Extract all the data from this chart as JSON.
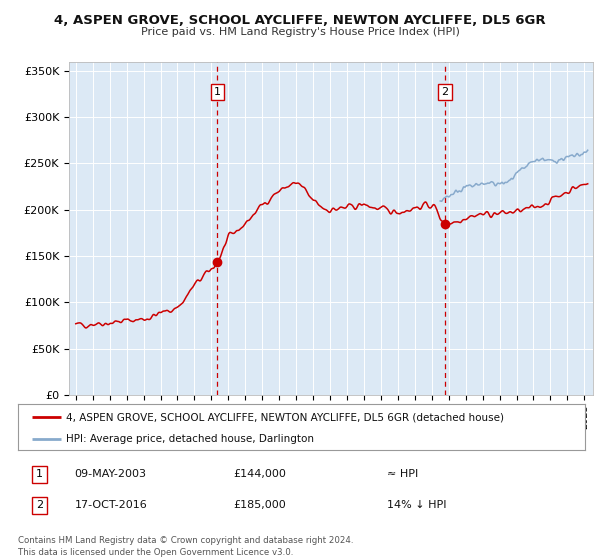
{
  "title1": "4, ASPEN GROVE, SCHOOL AYCLIFFE, NEWTON AYCLIFFE, DL5 6GR",
  "title2": "Price paid vs. HM Land Registry's House Price Index (HPI)",
  "ylim": [
    0,
    360000
  ],
  "yticks": [
    0,
    50000,
    100000,
    150000,
    200000,
    250000,
    300000,
    350000
  ],
  "ytick_labels": [
    "£0",
    "£50K",
    "£100K",
    "£150K",
    "£200K",
    "£250K",
    "£300K",
    "£350K"
  ],
  "xlim_start": 1994.6,
  "xlim_end": 2025.5,
  "background_color": "#dce9f5",
  "red_line_color": "#cc0000",
  "blue_line_color": "#88aacc",
  "marker1_date": 2003.36,
  "marker1_value": 144000,
  "marker2_date": 2016.79,
  "marker2_value": 185000,
  "legend_label_red": "4, ASPEN GROVE, SCHOOL AYCLIFFE, NEWTON AYCLIFFE, DL5 6GR (detached house)",
  "legend_label_blue": "HPI: Average price, detached house, Darlington",
  "annotation1_date": "09-MAY-2003",
  "annotation1_price": "£144,000",
  "annotation1_hpi": "≈ HPI",
  "annotation2_date": "17-OCT-2016",
  "annotation2_price": "£185,000",
  "annotation2_hpi": "14% ↓ HPI",
  "footer1": "Contains HM Land Registry data © Crown copyright and database right 2024.",
  "footer2": "This data is licensed under the Open Government Licence v3.0.",
  "red_key_x": [
    1995.0,
    1996.0,
    1997.0,
    1998.0,
    1999.0,
    2000.0,
    2001.0,
    2002.0,
    2003.36,
    2004.0,
    2005.0,
    2006.0,
    2007.0,
    2008.0,
    2009.0,
    2010.0,
    2011.0,
    2012.0,
    2013.0,
    2014.0,
    2015.0,
    2016.0,
    2016.79,
    2017.5,
    2018.0,
    2019.0,
    2020.0,
    2021.0,
    2022.0,
    2023.0,
    2024.0,
    2025.2
  ],
  "red_key_y": [
    75000,
    77000,
    78000,
    80000,
    82000,
    88000,
    95000,
    118000,
    144000,
    168000,
    185000,
    205000,
    220000,
    228000,
    210000,
    200000,
    202000,
    205000,
    200000,
    198000,
    202000,
    205000,
    185000,
    188000,
    192000,
    195000,
    196000,
    198000,
    202000,
    210000,
    220000,
    228000
  ],
  "blue_key_x": [
    2016.5,
    2017.0,
    2017.5,
    2018.0,
    2018.5,
    2019.0,
    2019.5,
    2020.0,
    2020.5,
    2021.0,
    2021.5,
    2022.0,
    2022.5,
    2023.0,
    2023.5,
    2024.0,
    2024.5,
    2025.2
  ],
  "blue_key_y": [
    210000,
    215000,
    220000,
    224000,
    226000,
    228000,
    228000,
    228000,
    230000,
    238000,
    245000,
    252000,
    255000,
    252000,
    254000,
    256000,
    258000,
    262000
  ]
}
